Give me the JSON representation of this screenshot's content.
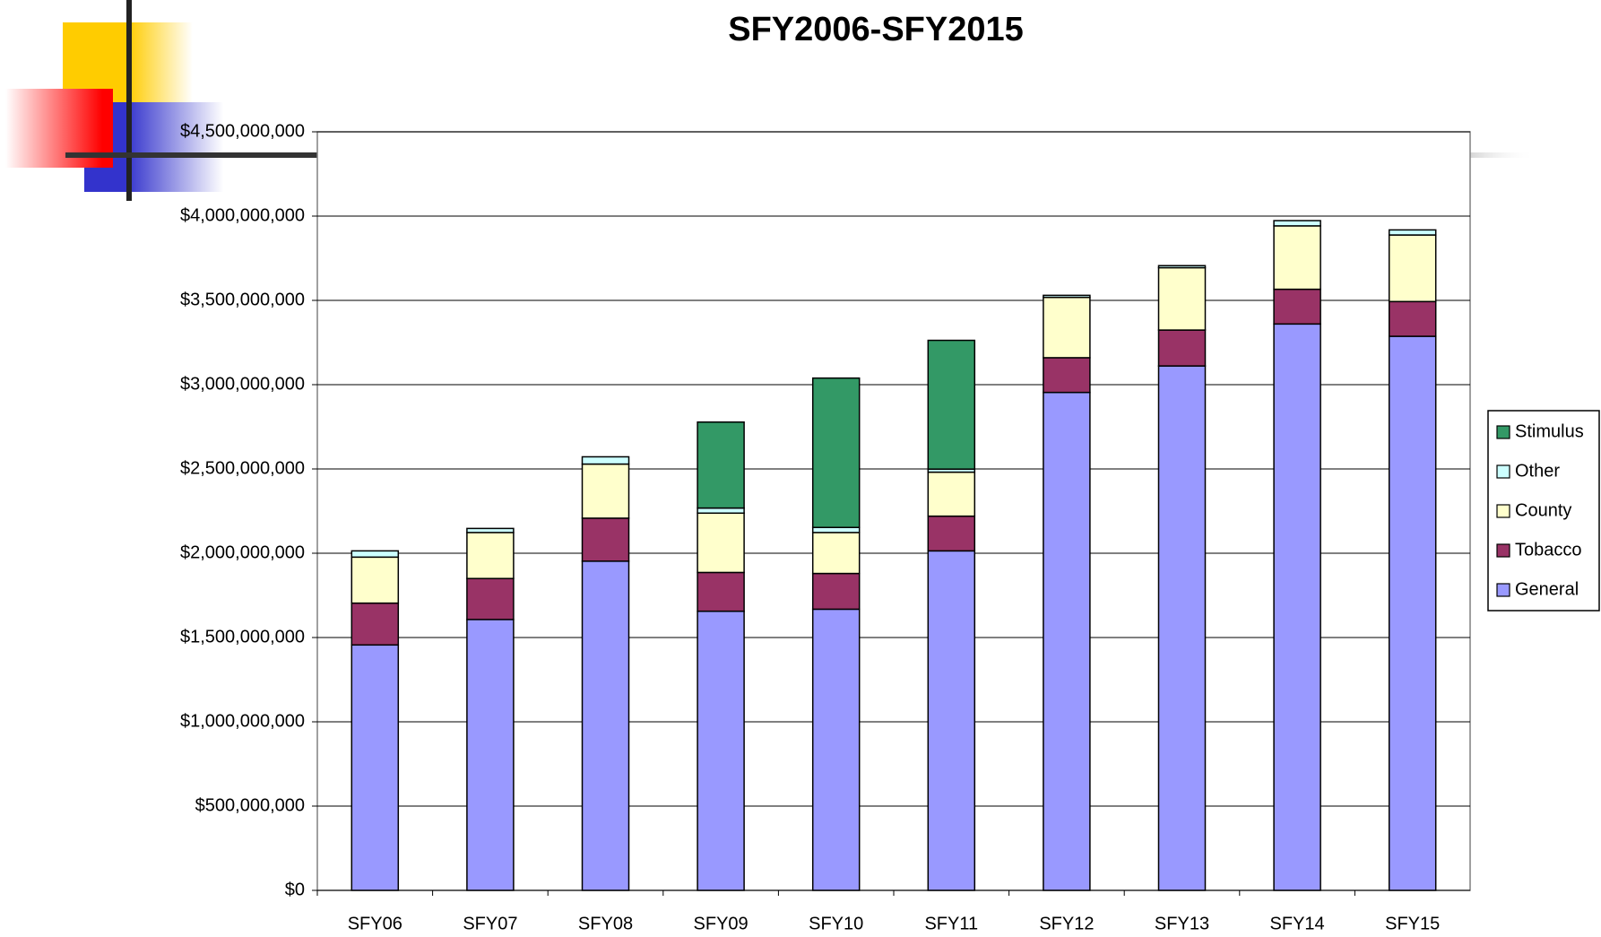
{
  "chart_data": {
    "type": "stacked_bar",
    "title": "SFY2006-SFY2015",
    "categories": [
      "SFY06",
      "SFY07",
      "SFY08",
      "SFY09",
      "SFY10",
      "SFY11",
      "SFY12",
      "SFY13",
      "SFY14",
      "SFY15"
    ],
    "series": [
      {
        "name": "General",
        "color": "#9999ff",
        "values": [
          1456000000,
          1607000000,
          1953000000,
          1656000000,
          1668000000,
          2014000000,
          2954000000,
          3111000000,
          3360000000,
          3287000000
        ]
      },
      {
        "name": "Tobacco",
        "color": "#993366",
        "values": [
          248000000,
          243000000,
          255000000,
          230000000,
          212000000,
          206000000,
          206000000,
          213000000,
          206000000,
          206000000
        ]
      },
      {
        "name": "County",
        "color": "#ffffcc",
        "values": [
          273000000,
          273000000,
          321000000,
          352000000,
          243000000,
          261000000,
          358000000,
          370000000,
          376000000,
          395000000
        ]
      },
      {
        "name": "Other",
        "color": "#ccffff",
        "values": [
          37000000,
          24000000,
          43000000,
          30000000,
          30000000,
          18000000,
          12000000,
          12000000,
          31000000,
          30000000
        ]
      },
      {
        "name": "Stimulus",
        "color": "#339966",
        "values": [
          0,
          0,
          0,
          510000000,
          886000000,
          764000000,
          0,
          0,
          0,
          0
        ]
      }
    ],
    "ylim": [
      0,
      4500000000
    ],
    "yticks": [
      {
        "value": 0,
        "label": "$0"
      },
      {
        "value": 500000000,
        "label": "$500,000,000"
      },
      {
        "value": 1000000000,
        "label": "$1,000,000,000"
      },
      {
        "value": 1500000000,
        "label": "$1,500,000,000"
      },
      {
        "value": 2000000000,
        "label": "$2,000,000,000"
      },
      {
        "value": 2500000000,
        "label": "$2,500,000,000"
      },
      {
        "value": 3000000000,
        "label": "$3,000,000,000"
      },
      {
        "value": 3500000000,
        "label": "$3,500,000,000"
      },
      {
        "value": 4000000000,
        "label": "$4,000,000,000"
      },
      {
        "value": 4500000000,
        "label": "$4,500,000,000"
      }
    ],
    "grid": true,
    "legend": "right"
  }
}
